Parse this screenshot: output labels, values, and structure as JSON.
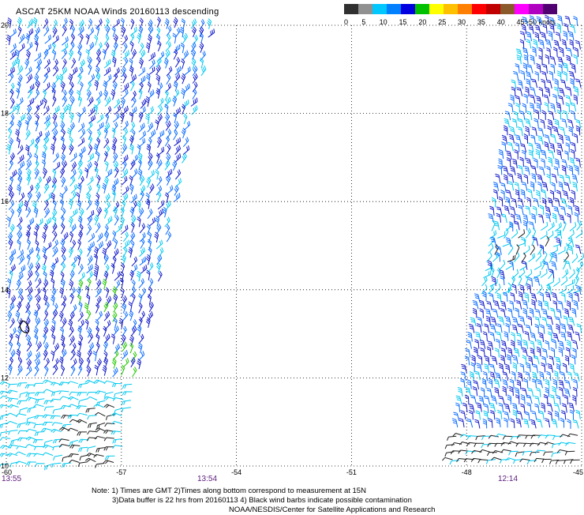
{
  "title": "ASCAT 25KM NOAA Winds 20160113 descending",
  "colorbar": {
    "labels": [
      "0",
      "5",
      "10",
      "15",
      "20",
      "25",
      "30",
      "35",
      "40",
      "45",
      ">50 knots"
    ],
    "colors": [
      "#303030",
      "#909090",
      "#00c8ff",
      "#0080ff",
      "#0000e0",
      "#00c000",
      "#ffff00",
      "#ffc000",
      "#ff8000",
      "#ff0000",
      "#c00000",
      "#8b5a2b",
      "#ff00ff",
      "#b000c0",
      "#500070"
    ]
  },
  "axes": {
    "lat_labels": [
      "20",
      "18",
      "16",
      "14",
      "12",
      "10"
    ],
    "lon_labels": [
      "-60",
      "-57",
      "-54",
      "-51",
      "-48",
      "-45"
    ],
    "lat_range": [
      10,
      20
    ],
    "lon_range": [
      -60,
      -45
    ],
    "grid": true
  },
  "pass_times": [
    "13:55",
    "13:54",
    "12:14"
  ],
  "notes": {
    "line1": "Note: 1) Times are GMT 2)Times along bottom correspond to measurement at 15N",
    "line2": "3)Data buffer is 22 hrs from 20160113 4) Black wind barbs indicate possible contamination",
    "line3": "NOAA/NESDIS/Center for Satellite Applications and Research"
  }
}
